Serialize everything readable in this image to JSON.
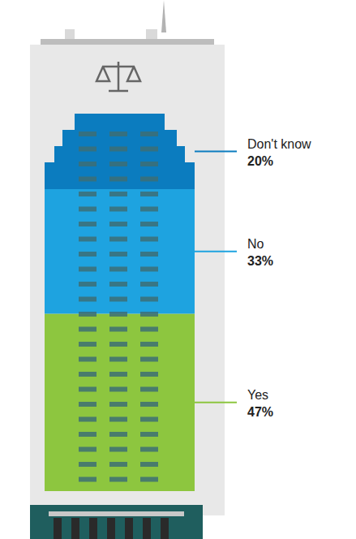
{
  "chart_data": {
    "type": "bar",
    "stacked": true,
    "categories": [
      "Yes",
      "No",
      "Don't know"
    ],
    "values": [
      47,
      33,
      20
    ],
    "value_labels": [
      "47%",
      "33%",
      "20%"
    ],
    "colors": [
      "#8dc63f",
      "#1ea3e0",
      "#0b7cbf"
    ],
    "ylim": [
      0,
      100
    ],
    "tick_labels": false,
    "data_labels": true
  }
}
